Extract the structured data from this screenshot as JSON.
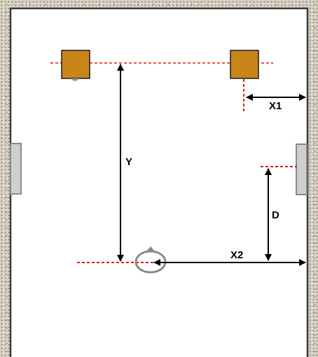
{
  "diagram": {
    "labels": {
      "y": "Y",
      "x1": "X1",
      "x2": "X2",
      "d": "D"
    },
    "colors": {
      "background_room": "#ffffff",
      "speaker_fill": "#c8861a",
      "speaker_stroke": "#1a1a1a",
      "guide_line": "#e01818",
      "dimension": "#000000",
      "door_fill": "#cfcfcf",
      "door_stroke": "#8a8a8a",
      "listener": "#8a8a8a"
    },
    "icons": {
      "speaker": "speaker-square-icon",
      "listener": "listener-head-icon",
      "door": "door-panel-icon"
    }
  }
}
